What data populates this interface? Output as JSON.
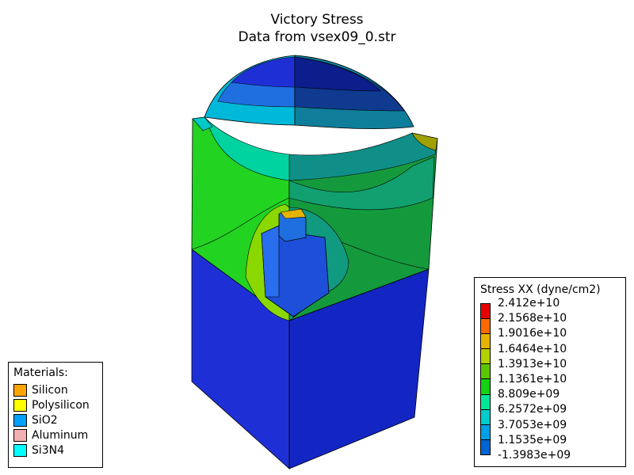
{
  "title": "Victory Stress",
  "subtitle": "Data from vsex09_0.str",
  "materials_legend": {
    "header": "Materials:",
    "items": [
      {
        "label": "Silicon",
        "color": "#ffa500"
      },
      {
        "label": "Polysilicon",
        "color": "#ffff00"
      },
      {
        "label": "SiO2",
        "color": "#00a0ff"
      },
      {
        "label": "Aluminum",
        "color": "#f2b0b0"
      },
      {
        "label": "Si3N4",
        "color": "#00ffff"
      }
    ]
  },
  "stress_legend": {
    "header": "Stress XX (dyne/cm2)",
    "levels": [
      "2.412e+10",
      "2.1568e+10",
      "1.9016e+10",
      "1.6464e+10",
      "1.3913e+10",
      "1.1361e+10",
      "8.809e+09",
      "6.2572e+09",
      "3.7053e+09",
      "1.1535e+09",
      "-1.3983e+09"
    ],
    "colors": [
      "#e60000",
      "#ff6a00",
      "#e6b400",
      "#b4d200",
      "#5ac800",
      "#14d214",
      "#00e696",
      "#00cccc",
      "#00a0e6",
      "#0064d2",
      "#0000e6"
    ]
  }
}
